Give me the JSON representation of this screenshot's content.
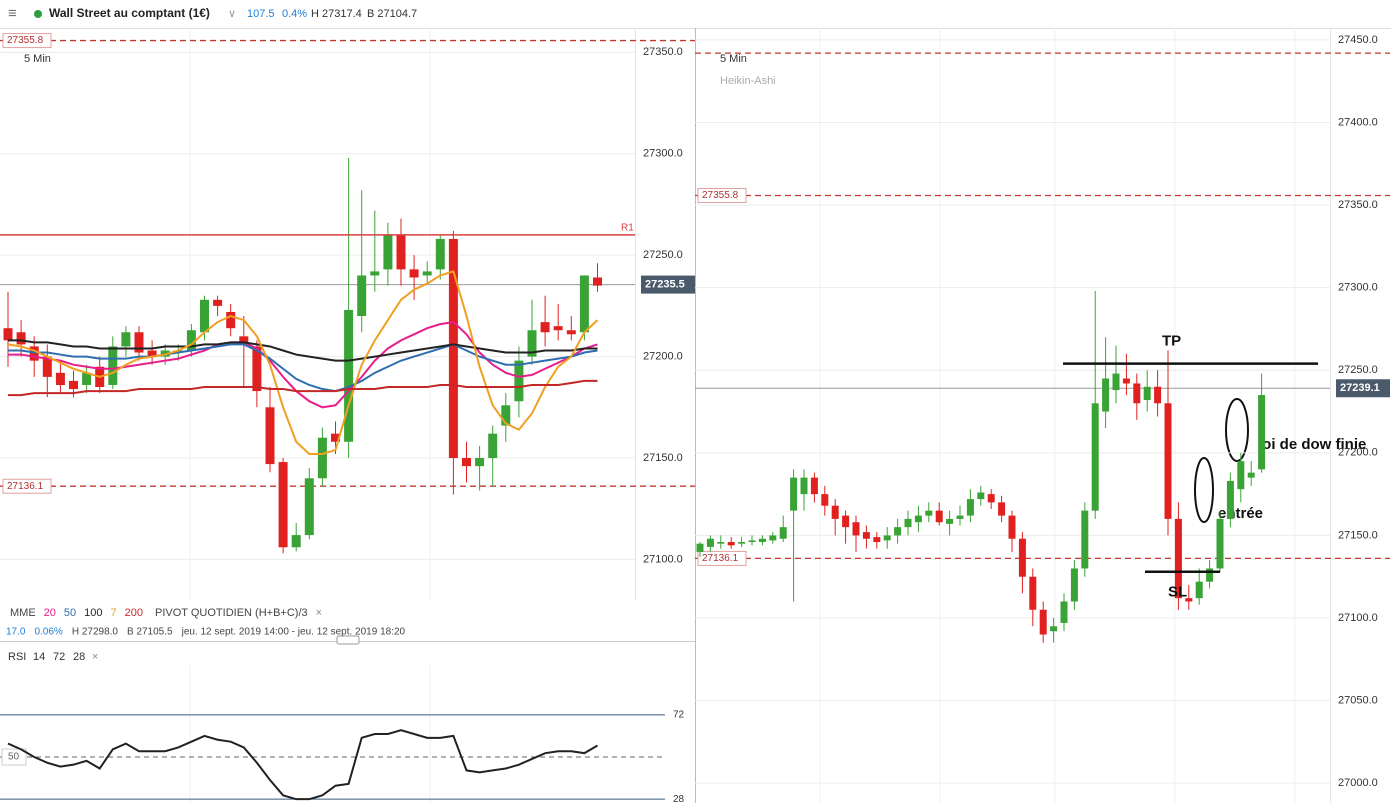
{
  "header": {
    "title": "Wall Street au comptant (1€)",
    "change": "107.5",
    "change_pct": "0.4%",
    "high": "H 27317.4",
    "low": "B 27104.7"
  },
  "left_chart": {
    "timeframe": "5 Min",
    "ylim": [
      27080,
      27362
    ],
    "yticks": [
      {
        "value": 27100,
        "label": "27100.0"
      },
      {
        "value": 27150,
        "label": "27150.0"
      },
      {
        "value": 27200,
        "label": "27200.0"
      },
      {
        "value": 27250,
        "label": "27250.0"
      },
      {
        "value": 27300,
        "label": "27300.0"
      },
      {
        "value": 27350,
        "label": "27350.0"
      }
    ],
    "candles": [
      [
        27214,
        27232,
        27195,
        27208
      ],
      [
        27212,
        27218,
        27200,
        27206
      ],
      [
        27205,
        27210,
        27190,
        27198
      ],
      [
        27200,
        27206,
        27180,
        27190
      ],
      [
        27192,
        27198,
        27182,
        27186
      ],
      [
        27188,
        27193,
        27180,
        27184
      ],
      [
        27186,
        27196,
        27182,
        27192
      ],
      [
        27195,
        27200,
        27182,
        27185
      ],
      [
        27186,
        27210,
        27184,
        27205
      ],
      [
        27205,
        27215,
        27200,
        27212
      ],
      [
        27212,
        27215,
        27198,
        27202
      ],
      [
        27203,
        27208,
        27196,
        27200
      ],
      [
        27200,
        27206,
        27196,
        27203
      ],
      [
        27202,
        27206,
        27198,
        27203
      ],
      [
        27203,
        27216,
        27200,
        27213
      ],
      [
        27212,
        27230,
        27208,
        27228
      ],
      [
        27228,
        27230,
        27220,
        27225
      ],
      [
        27222,
        27226,
        27210,
        27214
      ],
      [
        27210,
        27220,
        27185,
        27206
      ],
      [
        27205,
        27208,
        27175,
        27183
      ],
      [
        27175,
        27185,
        27143,
        27147
      ],
      [
        27148,
        27150,
        27103,
        27106
      ],
      [
        27106,
        27118,
        27104,
        27112
      ],
      [
        27112,
        27145,
        27110,
        27140
      ],
      [
        27140,
        27165,
        27136,
        27160
      ],
      [
        27162,
        27168,
        27152,
        27158
      ],
      [
        27158,
        27298,
        27150,
        27223
      ],
      [
        27220,
        27282,
        27212,
        27240
      ],
      [
        27240,
        27272,
        27232,
        27242
      ],
      [
        27243,
        27266,
        27235,
        27260
      ],
      [
        27260,
        27268,
        27235,
        27243
      ],
      [
        27243,
        27250,
        27228,
        27239
      ],
      [
        27240,
        27247,
        27236,
        27242
      ],
      [
        27243,
        27260,
        27238,
        27258
      ],
      [
        27258,
        27262,
        27132,
        27150
      ],
      [
        27150,
        27158,
        27138,
        27146
      ],
      [
        27146,
        27156,
        27134,
        27150
      ],
      [
        27150,
        27166,
        27136,
        27162
      ],
      [
        27166,
        27182,
        27158,
        27176
      ],
      [
        27178,
        27205,
        27170,
        27198
      ],
      [
        27200,
        27228,
        27196,
        27213
      ],
      [
        27217,
        27230,
        27205,
        27212
      ],
      [
        27215,
        27226,
        27208,
        27213
      ],
      [
        27213,
        27220,
        27208,
        27211
      ],
      [
        27212,
        27240,
        27208,
        27240
      ],
      [
        27239,
        27246,
        27232,
        27235
      ]
    ],
    "ma_label": "MME",
    "moving_averages": [
      {
        "name": "20",
        "color": "#e91e8c",
        "values": [
          27201,
          27201,
          27200,
          27199,
          27198,
          27196,
          27195,
          27194,
          27194,
          27195,
          27196,
          27197,
          27198,
          27199,
          27201,
          27203,
          27206,
          27207,
          27207,
          27204,
          27198,
          27190,
          27183,
          27178,
          27175,
          27176,
          27183,
          27190,
          27198,
          27204,
          27208,
          27211,
          27214,
          27216,
          27217,
          27211,
          27202,
          27196,
          27192,
          27190,
          27191,
          27194,
          27197,
          27200,
          27204,
          27206
        ]
      },
      {
        "name": "50",
        "color": "#2f6db0",
        "values": [
          27203,
          27203,
          27202,
          27202,
          27201,
          27200,
          27200,
          27199,
          27199,
          27199,
          27200,
          27200,
          27201,
          27202,
          27203,
          27204,
          27205,
          27206,
          27206,
          27203,
          27199,
          27194,
          27189,
          27186,
          27184,
          27183,
          27185,
          27188,
          27192,
          27195,
          27198,
          27200,
          27202,
          27204,
          27206,
          27203,
          27200,
          27198,
          27196,
          27196,
          27197,
          27198,
          27199,
          27200,
          27202,
          27203
        ]
      },
      {
        "name": "100",
        "color": "#222222",
        "values": [
          27208,
          27208,
          27207,
          27207,
          27206,
          27205,
          27205,
          27204,
          27204,
          27204,
          27204,
          27204,
          27205,
          27205,
          27205,
          27206,
          27206,
          27207,
          27207,
          27206,
          27205,
          27203,
          27201,
          27200,
          27199,
          27198,
          27198,
          27199,
          27200,
          27201,
          27202,
          27203,
          27204,
          27205,
          27206,
          27205,
          27204,
          27203,
          27202,
          27202,
          27202,
          27203,
          27203,
          27203,
          27204,
          27204
        ]
      },
      {
        "name": "7",
        "color": "#f0a020",
        "values": [
          27206,
          27205,
          27203,
          27200,
          27197,
          27194,
          27192,
          27190,
          27192,
          27196,
          27199,
          27200,
          27201,
          27203,
          27206,
          27212,
          27217,
          27220,
          27218,
          27210,
          27196,
          27175,
          27158,
          27152,
          27152,
          27154,
          27176,
          27196,
          27208,
          27218,
          27228,
          27233,
          27236,
          27240,
          27242,
          27220,
          27195,
          27176,
          27167,
          27164,
          27172,
          27185,
          27195,
          27200,
          27212,
          27218
        ]
      },
      {
        "name": "200",
        "color": "#c62828",
        "values": [
          27181,
          27181,
          27182,
          27182,
          27182,
          27182,
          27183,
          27183,
          27183,
          27183,
          27184,
          27184,
          27184,
          27184,
          27184,
          27185,
          27185,
          27185,
          27185,
          27185,
          27184,
          27184,
          27183,
          27183,
          27183,
          27183,
          27184,
          27184,
          27184,
          27185,
          27185,
          27185,
          27185,
          27186,
          27186,
          27185,
          27185,
          27185,
          27185,
          27185,
          27186,
          27186,
          27186,
          27187,
          27188,
          27188
        ]
      }
    ],
    "pivot_label": "PIVOT QUOTIDIEN (H+B+C)/3",
    "pivot": {
      "label": "R1",
      "value": 27260,
      "color": "#d94040"
    },
    "levels": [
      {
        "value": 27355.8,
        "label": "27355.8"
      },
      {
        "value": 27136.1,
        "label": "27136.1"
      }
    ],
    "last": {
      "value": 27235.5,
      "label": "27235.5"
    },
    "info": [
      "17.0",
      "0.06%",
      "H 27298.0",
      "B 27105.5",
      "jeu. 12 sept. 2019 14:00 - jeu. 12 sept. 2019 18:20"
    ]
  },
  "rsi": {
    "label": "RSI",
    "params": [
      "14",
      "72",
      "28"
    ],
    "ylim": [
      26,
      98
    ],
    "yticks": [
      28,
      72
    ],
    "mid": {
      "value": 50,
      "label": "50"
    },
    "values": [
      57,
      54,
      50,
      47,
      45,
      46,
      48,
      44,
      54,
      57,
      53,
      53,
      53,
      55,
      58,
      61,
      59,
      58,
      55,
      47,
      38,
      30,
      28,
      28,
      30,
      35,
      36,
      60,
      62,
      62,
      64,
      62,
      60,
      60,
      61,
      43,
      42,
      43,
      44,
      46,
      49,
      52,
      53,
      53,
      52,
      56
    ]
  },
  "right_chart": {
    "timeframe": "5 Min",
    "style": "Heikin-Ashi",
    "ylim": [
      26988,
      27456
    ],
    "yticks": [
      {
        "value": 27000,
        "label": "27000.0"
      },
      {
        "value": 27050,
        "label": "27050.0"
      },
      {
        "value": 27100,
        "label": "27100.0"
      },
      {
        "value": 27150,
        "label": "27150.0"
      },
      {
        "value": 27200,
        "label": "27200.0"
      },
      {
        "value": 27250,
        "label": "27250.0"
      },
      {
        "value": 27300,
        "label": "27300.0"
      },
      {
        "value": 27350,
        "label": "27350.0"
      },
      {
        "value": 27400,
        "label": "27400.0"
      },
      {
        "value": 27450,
        "label": "27450.0"
      }
    ],
    "candles": [
      [
        27140,
        27146,
        27137,
        27145
      ],
      [
        27143,
        27150,
        27140,
        27148
      ],
      [
        27145,
        27150,
        27142,
        27146
      ],
      [
        27146,
        27149,
        27142,
        27144
      ],
      [
        27145,
        27149,
        27143,
        27146
      ],
      [
        27146,
        27150,
        27144,
        27147
      ],
      [
        27146,
        27150,
        27144,
        27148
      ],
      [
        27147,
        27152,
        27145,
        27150
      ],
      [
        27148,
        27162,
        27146,
        27155
      ],
      [
        27165,
        27190,
        27110,
        27185
      ],
      [
        27175,
        27190,
        27165,
        27185
      ],
      [
        27185,
        27188,
        27170,
        27175
      ],
      [
        27175,
        27180,
        27162,
        27168
      ],
      [
        27168,
        27172,
        27150,
        27160
      ],
      [
        27162,
        27165,
        27145,
        27155
      ],
      [
        27158,
        27162,
        27140,
        27150
      ],
      [
        27152,
        27156,
        27142,
        27148
      ],
      [
        27149,
        27152,
        27142,
        27146
      ],
      [
        27147,
        27155,
        27142,
        27150
      ],
      [
        27150,
        27160,
        27145,
        27155
      ],
      [
        27155,
        27165,
        27150,
        27160
      ],
      [
        27158,
        27168,
        27152,
        27162
      ],
      [
        27162,
        27170,
        27158,
        27165
      ],
      [
        27165,
        27170,
        27156,
        27158
      ],
      [
        27157,
        27165,
        27150,
        27160
      ],
      [
        27160,
        27168,
        27156,
        27162
      ],
      [
        27162,
        27178,
        27158,
        27172
      ],
      [
        27172,
        27180,
        27168,
        27176
      ],
      [
        27175,
        27178,
        27166,
        27170
      ],
      [
        27170,
        27174,
        27158,
        27162
      ],
      [
        27162,
        27165,
        27140,
        27148
      ],
      [
        27148,
        27152,
        27115,
        27125
      ],
      [
        27125,
        27130,
        27095,
        27105
      ],
      [
        27105,
        27110,
        27085,
        27090
      ],
      [
        27092,
        27100,
        27085,
        27095
      ],
      [
        27097,
        27115,
        27092,
        27110
      ],
      [
        27110,
        27135,
        27105,
        27130
      ],
      [
        27130,
        27170,
        27125,
        27165
      ],
      [
        27165,
        27298,
        27160,
        27230
      ],
      [
        27225,
        27270,
        27215,
        27245
      ],
      [
        27238,
        27265,
        27230,
        27248
      ],
      [
        27245,
        27260,
        27235,
        27242
      ],
      [
        27242,
        27248,
        27220,
        27230
      ],
      [
        27232,
        27250,
        27225,
        27240
      ],
      [
        27240,
        27250,
        27222,
        27230
      ],
      [
        27230,
        27262,
        27150,
        27160
      ],
      [
        27160,
        27170,
        27105,
        27112
      ],
      [
        27112,
        27120,
        27105,
        27110
      ],
      [
        27112,
        27130,
        27108,
        27122
      ],
      [
        27122,
        27135,
        27118,
        27130
      ],
      [
        27130,
        27165,
        27128,
        27160
      ],
      [
        27160,
        27188,
        27155,
        27183
      ],
      [
        27178,
        27200,
        27170,
        27195
      ],
      [
        27185,
        27195,
        27180,
        27188
      ],
      [
        27190,
        27248,
        27188,
        27235
      ]
    ],
    "levels": [
      {
        "value": 27442
      },
      {
        "value": 27355.8,
        "label": "27355.8"
      },
      {
        "value": 27136.1,
        "label": "27136.1"
      }
    ],
    "last": {
      "value": 27239.1,
      "label": "27239.1"
    },
    "tp": {
      "label": "TP",
      "value": 27254
    },
    "sl": {
      "label": "SL",
      "value": 27128
    },
    "entry": "entrée",
    "dow": "loi de dow finie"
  }
}
